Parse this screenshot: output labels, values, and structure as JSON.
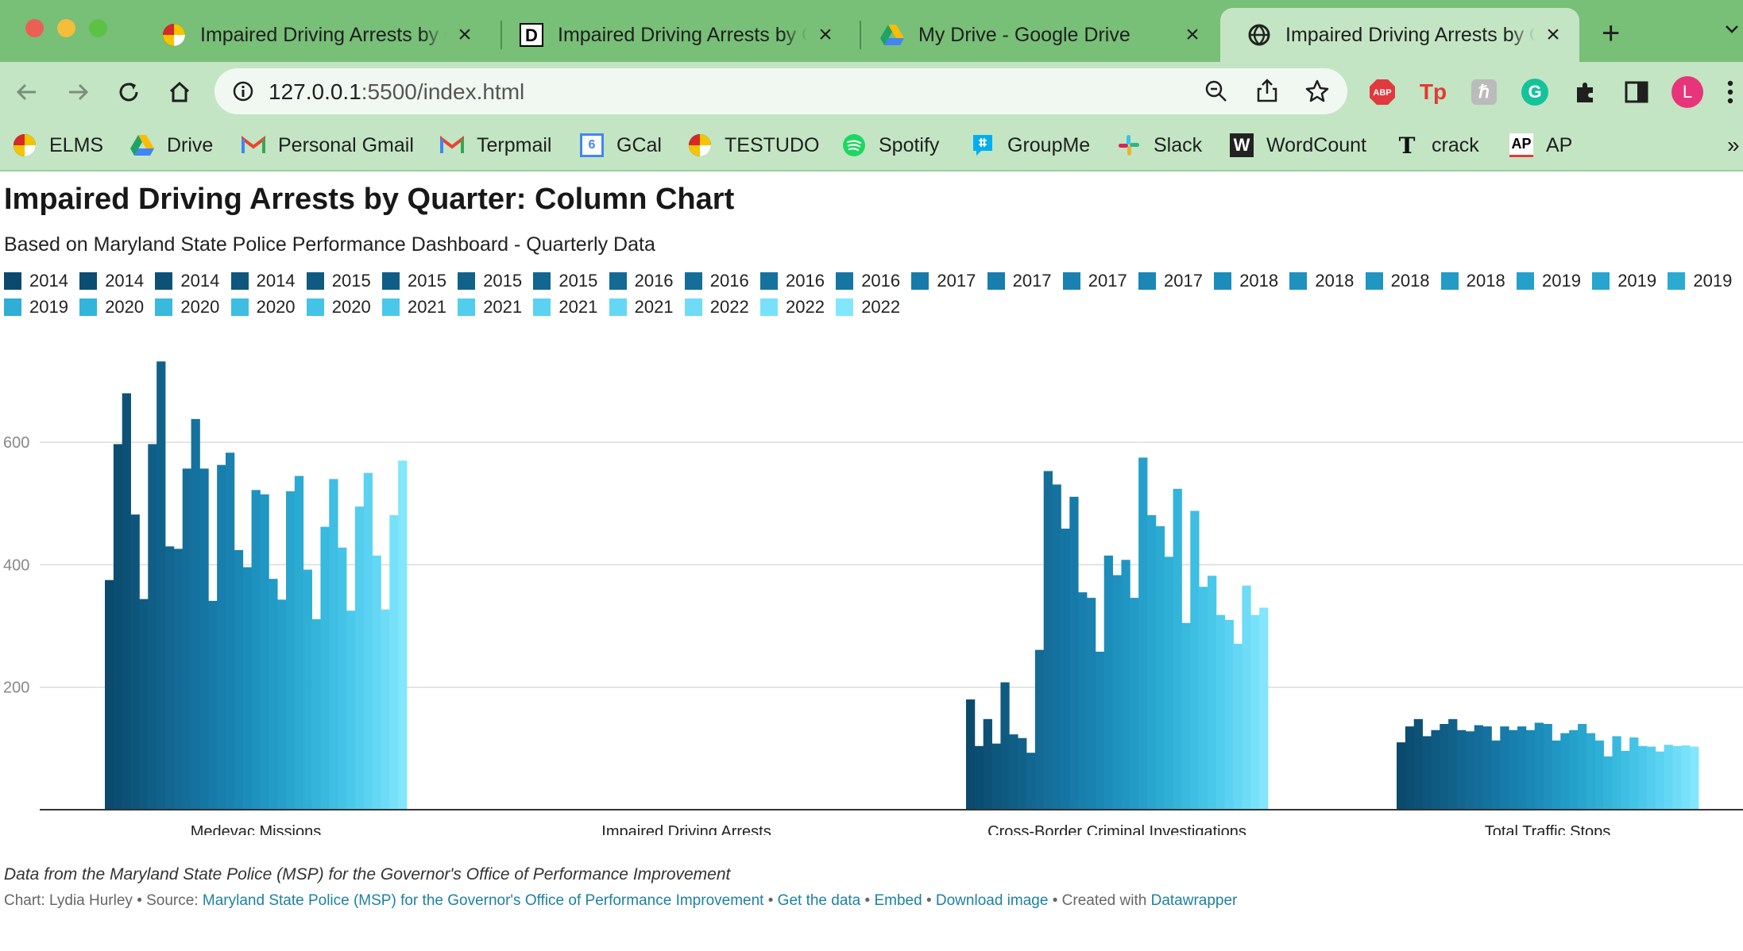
{
  "browser": {
    "tabs": [
      {
        "title": "Impaired Driving Arrests by Quarter",
        "icon": "maryland-flag-icon",
        "active": false
      },
      {
        "title": "Impaired Driving Arrests by Quarter",
        "icon": "datawrapper-d-icon",
        "active": false
      },
      {
        "title": "My Drive - Google Drive",
        "icon": "google-drive-icon",
        "active": false
      },
      {
        "title": "Impaired Driving Arrests by Quarter",
        "icon": "globe-icon",
        "active": true
      }
    ],
    "url_host": "127.0.0.1",
    "url_rest": ":5500/index.html",
    "profile_initial": "L",
    "bookmarks": [
      {
        "label": "ELMS",
        "icon": "maryland-flag-icon"
      },
      {
        "label": "Drive",
        "icon": "google-drive-icon"
      },
      {
        "label": "Personal Gmail",
        "icon": "gmail-icon"
      },
      {
        "label": "Terpmail",
        "icon": "gmail-icon"
      },
      {
        "label": "GCal",
        "icon": "google-calendar-icon",
        "glyph": "6"
      },
      {
        "label": "TESTUDO",
        "icon": "maryland-flag-icon"
      },
      {
        "label": "Spotify",
        "icon": "spotify-icon"
      },
      {
        "label": "GroupMe",
        "icon": "groupme-icon"
      },
      {
        "label": "Slack",
        "icon": "slack-icon"
      },
      {
        "label": "WordCount",
        "icon": "wordcount-w-icon",
        "glyph": "W"
      },
      {
        "label": "crack",
        "icon": "nytimes-t-icon",
        "glyph": "T"
      },
      {
        "label": "AP",
        "icon": "ap-icon",
        "glyph": "AP"
      }
    ],
    "overflow_glyph": "»",
    "extensions": {
      "abp": "ABP",
      "tp": "Tp",
      "h": "ℏ",
      "g": "G"
    }
  },
  "page": {
    "headline": "Impaired Driving Arrests by Quarter: Column Chart",
    "subtitle": "Based on Maryland State Police Performance Dashboard - Quarterly Data",
    "notes": "Data from the Maryland State Police (MSP) for the Governor's Office of Performance Improvement",
    "byline": {
      "prefix": "Chart: Lydia Hurley • Source: ",
      "source_link": "Maryland State Police (MSP) for the Governor's Office of Performance Improvement",
      "sep": " • ",
      "get_data": "Get the data",
      "embed": "Embed",
      "download": "Download image",
      "created": "Created with ",
      "datawrapper": "Datawrapper"
    }
  },
  "chart_data": {
    "type": "bar",
    "categories": [
      "Medevac Missions",
      "Impaired Driving Arrests",
      "Cross-Border Criminal Investigations",
      "Total Traffic Stops"
    ],
    "ylim": [
      0,
      700
    ],
    "yticks": [
      200,
      400,
      600
    ],
    "grid": true,
    "legend_position": "top",
    "series": [
      {
        "name": "2014",
        "color": "#0b4a6c",
        "values": [
          375,
          null,
          180,
          110
        ]
      },
      {
        "name": "2014",
        "color": "#0c4e71",
        "values": [
          597,
          null,
          104,
          136
        ]
      },
      {
        "name": "2014",
        "color": "#0d5276",
        "values": [
          680,
          null,
          148,
          148
        ]
      },
      {
        "name": "2014",
        "color": "#0e567b",
        "values": [
          482,
          null,
          108,
          120
        ]
      },
      {
        "name": "2015",
        "color": "#0f5a80",
        "values": [
          344,
          null,
          208,
          130
        ]
      },
      {
        "name": "2015",
        "color": "#105e85",
        "values": [
          597,
          null,
          123,
          140
        ]
      },
      {
        "name": "2015",
        "color": "#11628a",
        "values": [
          732,
          null,
          117,
          148
        ]
      },
      {
        "name": "2015",
        "color": "#12668f",
        "values": [
          430,
          null,
          93,
          130
        ]
      },
      {
        "name": "2016",
        "color": "#136a94",
        "values": [
          426,
          null,
          261,
          128
        ]
      },
      {
        "name": "2016",
        "color": "#146e99",
        "values": [
          557,
          null,
          553,
          138
        ]
      },
      {
        "name": "2016",
        "color": "#15729e",
        "values": [
          638,
          null,
          531,
          136
        ]
      },
      {
        "name": "2016",
        "color": "#1676a3",
        "values": [
          557,
          null,
          459,
          113
        ]
      },
      {
        "name": "2017",
        "color": "#177aa8",
        "values": [
          341,
          null,
          511,
          136
        ]
      },
      {
        "name": "2017",
        "color": "#187ead",
        "values": [
          563,
          null,
          355,
          130
        ]
      },
      {
        "name": "2017",
        "color": "#1982b1",
        "values": [
          583,
          null,
          346,
          136
        ]
      },
      {
        "name": "2017",
        "color": "#1a87b5",
        "values": [
          424,
          null,
          258,
          130
        ]
      },
      {
        "name": "2018",
        "color": "#1c8cba",
        "values": [
          396,
          null,
          415,
          142
        ]
      },
      {
        "name": "2018",
        "color": "#1e91be",
        "values": [
          522,
          null,
          383,
          140
        ]
      },
      {
        "name": "2018",
        "color": "#2096c2",
        "values": [
          515,
          null,
          408,
          113
        ]
      },
      {
        "name": "2018",
        "color": "#229bc6",
        "values": [
          377,
          null,
          346,
          125
        ]
      },
      {
        "name": "2019",
        "color": "#25a0ca",
        "values": [
          343,
          null,
          575,
          130
        ]
      },
      {
        "name": "2019",
        "color": "#28a5ce",
        "values": [
          520,
          null,
          481,
          140
        ]
      },
      {
        "name": "2019",
        "color": "#2baad2",
        "values": [
          545,
          null,
          463,
          125
        ]
      },
      {
        "name": "2019",
        "color": "#2fafd6",
        "values": [
          392,
          null,
          413,
          113
        ]
      },
      {
        "name": "2020",
        "color": "#33b4da",
        "values": [
          311,
          null,
          524,
          87
        ]
      },
      {
        "name": "2020",
        "color": "#38b9de",
        "values": [
          462,
          null,
          305,
          120
        ]
      },
      {
        "name": "2020",
        "color": "#3dbee2",
        "values": [
          540,
          null,
          488,
          96
        ]
      },
      {
        "name": "2020",
        "color": "#43c3e6",
        "values": [
          428,
          null,
          364,
          118
        ]
      },
      {
        "name": "2021",
        "color": "#4ac8ea",
        "values": [
          325,
          null,
          382,
          104
        ]
      },
      {
        "name": "2021",
        "color": "#52cdee",
        "values": [
          495,
          null,
          318,
          103
        ]
      },
      {
        "name": "2021",
        "color": "#5bd2f1",
        "values": [
          550,
          null,
          310,
          95
        ]
      },
      {
        "name": "2021",
        "color": "#64d7f4",
        "values": [
          415,
          null,
          271,
          106
        ]
      },
      {
        "name": "2022",
        "color": "#6edcf7",
        "values": [
          327,
          null,
          366,
          104
        ]
      },
      {
        "name": "2022",
        "color": "#78e1fa",
        "values": [
          481,
          null,
          318,
          105
        ]
      },
      {
        "name": "2022",
        "color": "#82e6fd",
        "values": [
          570,
          null,
          330,
          103
        ]
      }
    ]
  }
}
